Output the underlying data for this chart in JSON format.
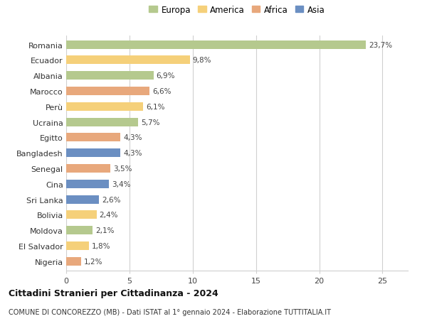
{
  "countries": [
    "Romania",
    "Ecuador",
    "Albania",
    "Marocco",
    "Perù",
    "Ucraina",
    "Egitto",
    "Bangladesh",
    "Senegal",
    "Cina",
    "Sri Lanka",
    "Bolivia",
    "Moldova",
    "El Salvador",
    "Nigeria"
  ],
  "values": [
    23.7,
    9.8,
    6.9,
    6.6,
    6.1,
    5.7,
    4.3,
    4.3,
    3.5,
    3.4,
    2.6,
    2.4,
    2.1,
    1.8,
    1.2
  ],
  "labels": [
    "23,7%",
    "9,8%",
    "6,9%",
    "6,6%",
    "6,1%",
    "5,7%",
    "4,3%",
    "4,3%",
    "3,5%",
    "3,4%",
    "2,6%",
    "2,4%",
    "2,1%",
    "1,8%",
    "1,2%"
  ],
  "continents": [
    "Europa",
    "America",
    "Europa",
    "Africa",
    "America",
    "Europa",
    "Africa",
    "Asia",
    "Africa",
    "Asia",
    "Asia",
    "America",
    "Europa",
    "America",
    "Africa"
  ],
  "colors": {
    "Europa": "#b5c98e",
    "America": "#f5d07a",
    "Africa": "#e8a87c",
    "Asia": "#6b8fc2"
  },
  "legend_order": [
    "Europa",
    "America",
    "Africa",
    "Asia"
  ],
  "title": "Cittadini Stranieri per Cittadinanza - 2024",
  "subtitle": "COMUNE DI CONCOREZZO (MB) - Dati ISTAT al 1° gennaio 2024 - Elaborazione TUTTITALIA.IT",
  "xlim": [
    0,
    27
  ],
  "xticks": [
    0,
    5,
    10,
    15,
    20,
    25
  ],
  "background_color": "#ffffff",
  "grid_color": "#d0d0d0"
}
